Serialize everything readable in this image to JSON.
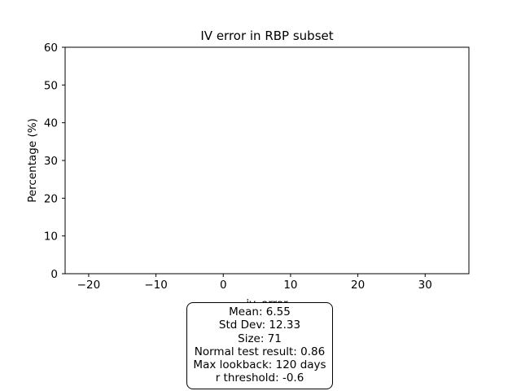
{
  "chart_data": {
    "type": "bar",
    "title": "IV error in RBP subset",
    "xlabel": "iv_error",
    "ylabel": "Percentage (%)",
    "xlim": [
      -23.5,
      36.5
    ],
    "ylim": [
      0,
      60
    ],
    "xticks": [
      -20,
      -10,
      0,
      10,
      20,
      30
    ],
    "xtick_labels": [
      "−20",
      "−10",
      "0",
      "10",
      "20",
      "30"
    ],
    "yticks": [
      0,
      10,
      20,
      30,
      40,
      50,
      60
    ],
    "ytick_labels": [
      "0",
      "10",
      "20",
      "30",
      "40",
      "50",
      "60"
    ],
    "grid": false,
    "series": [
      {
        "values": []
      }
    ]
  },
  "stats": {
    "lines": [
      "Mean: 6.55",
      "Std Dev: 12.33",
      "Size: 71",
      "Normal test result: 0.86",
      "Max lookback: 120 days",
      "r threshold: -0.6"
    ]
  }
}
